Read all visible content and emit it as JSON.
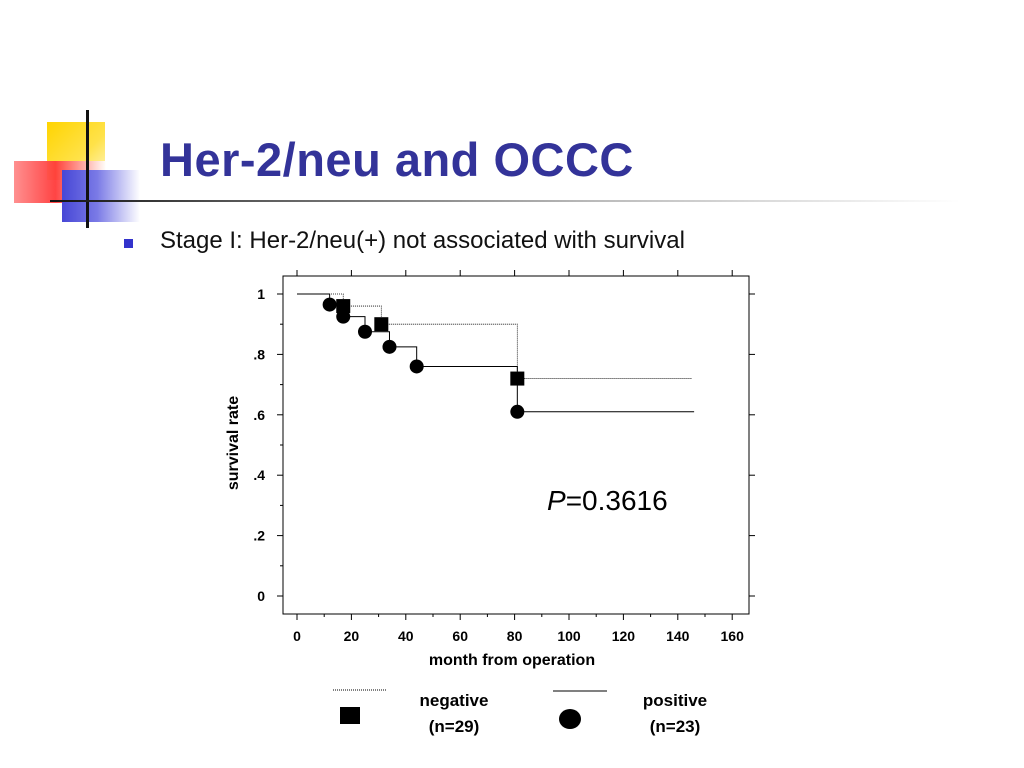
{
  "slide": {
    "title": "Her-2/neu and OCCC",
    "bullet": "Stage I:  Her-2/neu(+) not associated with survival",
    "colors": {
      "title": "#333399",
      "bullet": "#3333cc"
    }
  },
  "chart_data": {
    "type": "line",
    "title": "",
    "xlabel": "month from operation",
    "ylabel": "survival rate",
    "xlim": [
      0,
      160
    ],
    "ylim": [
      0,
      1
    ],
    "x_ticks": [
      "0",
      "20",
      "40",
      "60",
      "80",
      "100",
      "120",
      "140",
      "160"
    ],
    "y_ticks": [
      "0",
      ".2",
      ".4",
      ".6",
      ".8",
      "1"
    ],
    "annotation": {
      "italic": "P",
      "rest": "=0.3616"
    },
    "series": [
      {
        "name": "negative",
        "sublabel": "(n=29)",
        "marker": "square",
        "line_style": "dotted",
        "steps": [
          [
            0,
            1.0
          ],
          [
            17,
            0.96
          ],
          [
            31,
            0.9
          ],
          [
            81,
            0.72
          ],
          [
            145,
            0.72
          ]
        ],
        "events": [
          [
            17,
            0.96
          ],
          [
            31,
            0.9
          ],
          [
            81,
            0.72
          ]
        ]
      },
      {
        "name": "positive",
        "sublabel": "(n=23)",
        "marker": "circle",
        "line_style": "solid",
        "steps": [
          [
            0,
            1.0
          ],
          [
            12,
            0.965
          ],
          [
            17,
            0.925
          ],
          [
            25,
            0.875
          ],
          [
            34,
            0.825
          ],
          [
            44,
            0.76
          ],
          [
            81,
            0.61
          ],
          [
            146,
            0.61
          ]
        ],
        "events": [
          [
            12,
            0.965
          ],
          [
            17,
            0.925
          ],
          [
            25,
            0.875
          ],
          [
            34,
            0.825
          ],
          [
            44,
            0.76
          ],
          [
            81,
            0.61
          ]
        ]
      }
    ]
  }
}
